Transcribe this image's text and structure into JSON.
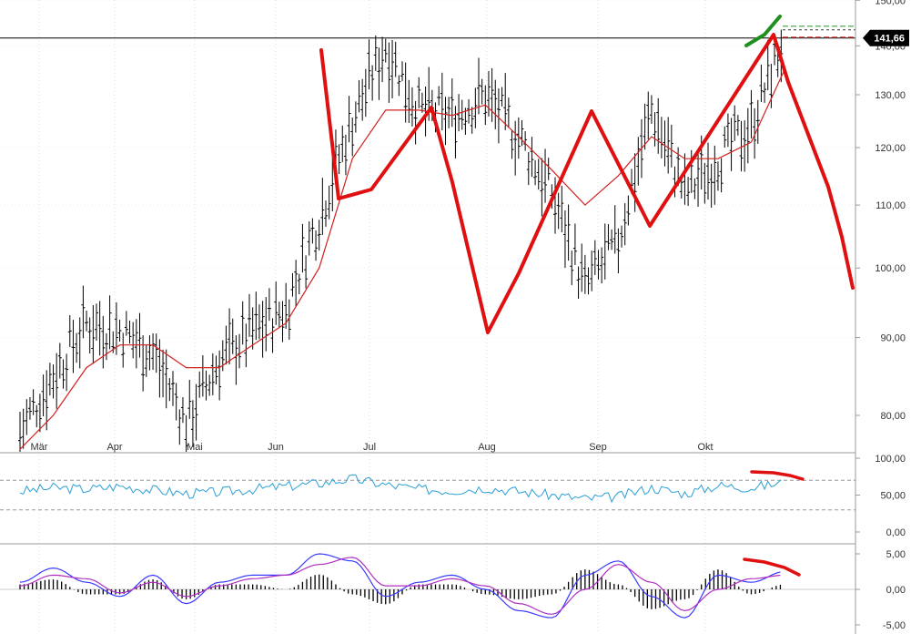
{
  "chart_data": [
    {
      "type": "line",
      "title": "",
      "log_scale": true,
      "ylim": [
        75,
        150
      ],
      "y_ticks": [
        "80,00",
        "90,00",
        "100,00",
        "110,00",
        "120,00",
        "130,00",
        "140,00",
        "150,00"
      ],
      "x_ticks": [
        "Mär",
        "Apr",
        "Mai",
        "Jun",
        "Jul",
        "Aug",
        "Sep",
        "Okt"
      ],
      "last_price": 141.66,
      "last_price_label": "141,66",
      "series": [
        {
          "kind": "price",
          "x": [
            "Mär",
            "Mär",
            "Mär",
            "Apr",
            "Apr",
            "Apr",
            "Mai",
            "Mai",
            "Mai",
            "Jun",
            "Jun",
            "Jun",
            "Jul",
            "Jul",
            "Jul",
            "Aug",
            "Aug",
            "Aug",
            "Sep",
            "Sep",
            "Sep",
            "Okt",
            "Okt",
            "Okt"
          ],
          "values": [
            78,
            85,
            92,
            91,
            88,
            79,
            87,
            91,
            94,
            108,
            125,
            140,
            127,
            126,
            130,
            122,
            112,
            97,
            104,
            127,
            112,
            118,
            124,
            141.66
          ]
        },
        {
          "kind": "moving-average",
          "color": "#d42020",
          "values": [
            76,
            80,
            86,
            89,
            89,
            86,
            86,
            89,
            92,
            100,
            118,
            127,
            127,
            126,
            128,
            122,
            116,
            110,
            115,
            122,
            118,
            118,
            121,
            135
          ]
        }
      ],
      "annotations": [
        {
          "kind": "hand-drawn-projection",
          "color": "#e01010",
          "points": [
            [
              139,
              "Jun"
            ],
            [
              110,
              "Jun"
            ],
            [
              112,
              "Jul"
            ],
            [
              128,
              "Jul"
            ],
            [
              113,
              "Jul"
            ],
            [
              92,
              "Aug"
            ],
            [
              115,
              "Aug"
            ],
            [
              127,
              "Sep"
            ],
            [
              107,
              "Sep"
            ],
            [
              143,
              "Okt"
            ],
            [
              98,
              "Okt"
            ]
          ]
        },
        {
          "kind": "trend-stroke",
          "color": "#1f8f1f"
        }
      ]
    },
    {
      "type": "line",
      "title": "",
      "ylim": [
        0,
        100
      ],
      "y_ticks": [
        "100,00",
        "50,00",
        "0,00"
      ],
      "reference_lines": [
        70,
        30
      ],
      "series": [
        {
          "kind": "oscillator",
          "color": "#2a9fd6",
          "values": [
            55,
            60,
            58,
            62,
            57,
            52,
            54,
            58,
            62,
            66,
            72,
            64,
            58,
            56,
            60,
            55,
            50,
            45,
            48,
            60,
            52,
            63,
            60,
            67
          ]
        }
      ]
    },
    {
      "type": "line",
      "title": "",
      "ylim": [
        -5,
        5
      ],
      "y_ticks": [
        "5,00",
        "0,00",
        "-5,00"
      ],
      "series": [
        {
          "kind": "macd-line",
          "color": "#3a3aff",
          "values": [
            1,
            3,
            1,
            -1,
            2,
            -2,
            1,
            2,
            2,
            5,
            4,
            -1,
            1,
            2,
            0,
            -3,
            -4,
            2,
            4,
            -1,
            -4,
            2,
            1,
            2.5
          ]
        },
        {
          "kind": "signal-line",
          "color": "#b030c0",
          "values": [
            0.5,
            2,
            1.5,
            -0.5,
            1,
            -1,
            0.5,
            1.5,
            2,
            3.5,
            4.5,
            0.5,
            0.5,
            1.5,
            0.5,
            -2,
            -3.5,
            0,
            3.5,
            1,
            -3,
            0,
            1.5,
            2
          ]
        }
      ]
    }
  ]
}
